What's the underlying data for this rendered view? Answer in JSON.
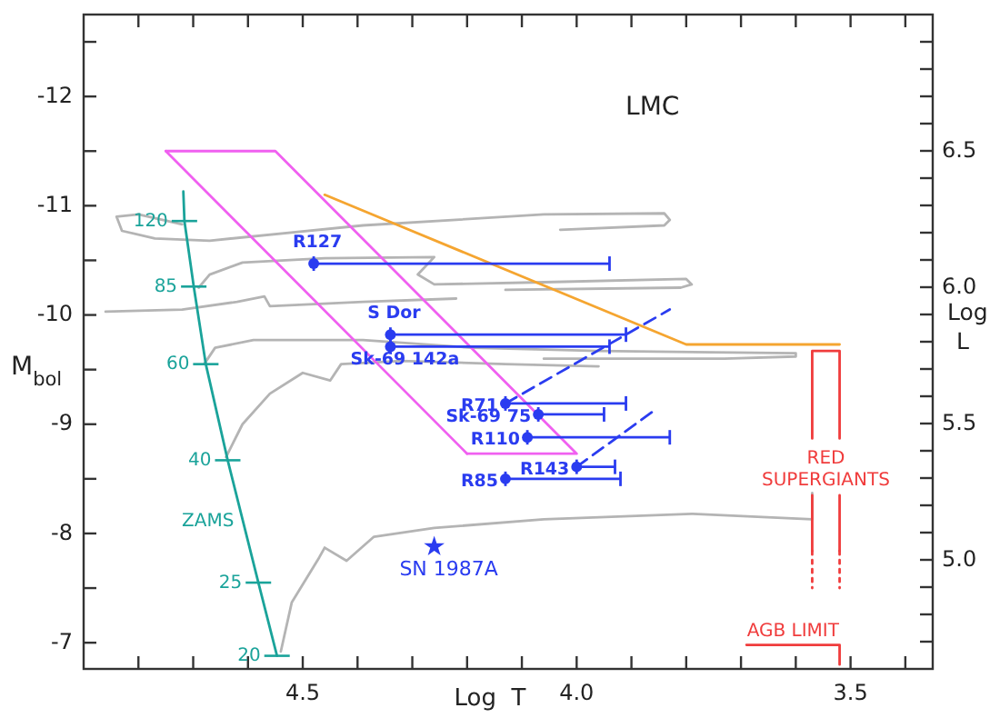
{
  "chart_data": {
    "type": "scatter",
    "title": "LMC",
    "xlabel": "Log  T",
    "ylabel": "M$_{bol}$",
    "y2label": "Log L",
    "xlim": [
      4.9,
      3.35
    ],
    "ylim": [
      -6.76,
      -12.75
    ],
    "y2lim": [
      4.6,
      7.0
    ],
    "xticks": [
      {
        "value": 4.8,
        "label": null
      },
      {
        "value": 4.7,
        "label": null
      },
      {
        "value": 4.6,
        "label": null
      },
      4.5,
      {
        "value": 4.4,
        "label": null
      },
      {
        "value": 4.3,
        "label": null
      },
      {
        "value": 4.2,
        "label": null
      },
      {
        "value": 4.1,
        "label": null
      },
      {
        "value": 4.0,
        "label": "4.0"
      },
      {
        "value": 3.9,
        "label": null
      },
      {
        "value": 3.8,
        "label": null
      },
      {
        "value": 3.7,
        "label": null
      },
      {
        "value": 3.6,
        "label": null
      },
      3.5,
      {
        "value": 3.4,
        "label": null
      }
    ],
    "yticks": [
      {
        "value": -12.5,
        "label": null
      },
      -12,
      {
        "value": -11.5,
        "label": null
      },
      -11,
      {
        "value": -10.5,
        "label": null
      },
      -10,
      {
        "value": -9.5,
        "label": null
      },
      -9,
      {
        "value": -8.5,
        "label": null
      },
      -8,
      {
        "value": -7.5,
        "label": null
      },
      -7
    ],
    "y2ticks": [
      {
        "value": 4.7,
        "label": null
      },
      {
        "value": 4.8,
        "label": null
      },
      {
        "value": 4.9,
        "label": null
      },
      {
        "value": 5.0,
        "label": "5.0"
      },
      {
        "value": 5.1,
        "label": null
      },
      {
        "value": 5.2,
        "label": null
      },
      {
        "value": 5.3,
        "label": null
      },
      {
        "value": 5.4,
        "label": null
      },
      5.5,
      {
        "value": 5.6,
        "label": null
      },
      {
        "value": 5.7,
        "label": null
      },
      {
        "value": 5.8,
        "label": null
      },
      {
        "value": 5.9,
        "label": null
      },
      {
        "value": 6.0,
        "label": "6.0"
      },
      {
        "value": 6.1,
        "label": null
      },
      {
        "value": 6.2,
        "label": null
      },
      {
        "value": 6.3,
        "label": null
      },
      {
        "value": 6.4,
        "label": null
      },
      6.5,
      {
        "value": 6.6,
        "label": null
      },
      {
        "value": 6.7,
        "label": null
      },
      {
        "value": 6.8,
        "label": null
      },
      {
        "value": 6.9,
        "label": null
      }
    ],
    "series": [
      {
        "type": "line",
        "color": "#b4b4b4",
        "x": [
          4.72,
          4.8,
          4.84,
          4.83,
          4.77,
          4.67,
          4.39,
          4.06,
          3.84,
          3.83,
          3.84,
          4.03
        ],
        "values": [
          -10.83,
          -10.92,
          -10.9,
          -10.77,
          -10.7,
          -10.68,
          -10.82,
          -10.92,
          -10.93,
          -10.87,
          -10.82,
          -10.78
        ]
      },
      {
        "type": "line",
        "color": "#b4b4b4",
        "x": [
          4.69,
          4.67,
          4.61,
          4.46,
          4.26,
          4.29,
          4.26,
          4.06,
          3.8,
          3.79,
          3.81,
          4.13
        ],
        "values": [
          -10.25,
          -10.37,
          -10.48,
          -10.52,
          -10.53,
          -10.37,
          -10.28,
          -10.3,
          -10.33,
          -10.28,
          -10.25,
          -10.23
        ]
      },
      {
        "type": "line",
        "color": "#b4b4b4",
        "x": [
          4.86,
          4.72,
          4.62,
          4.57,
          4.56,
          4.39,
          4.22
        ],
        "values": [
          -10.03,
          -10.05,
          -10.12,
          -10.17,
          -10.08,
          -10.12,
          -10.15
        ]
      },
      {
        "type": "line",
        "color": "#b4b4b4",
        "x": [
          4.68,
          4.66,
          4.59,
          4.39,
          4.19,
          3.96,
          3.6,
          3.6,
          3.73,
          4.06
        ],
        "values": [
          -9.55,
          -9.7,
          -9.77,
          -9.77,
          -9.7,
          -9.67,
          -9.65,
          -9.62,
          -9.6,
          -9.6
        ]
      },
      {
        "type": "line",
        "color": "#b4b4b4",
        "x": [
          4.64,
          4.61,
          4.56,
          4.5,
          4.45,
          4.43,
          4.32,
          4.13,
          3.96
        ],
        "values": [
          -8.7,
          -9.0,
          -9.28,
          -9.47,
          -9.4,
          -9.55,
          -9.58,
          -9.55,
          -9.53
        ]
      },
      {
        "type": "line",
        "color": "#b4b4b4",
        "x": [
          4.54,
          4.52,
          4.47,
          4.46,
          4.42,
          4.37,
          4.26,
          4.06,
          3.79,
          3.57,
          3.57
        ],
        "values": [
          -6.92,
          -7.37,
          -7.78,
          -7.87,
          -7.75,
          -7.97,
          -8.05,
          -8.13,
          -8.18,
          -8.13,
          -8.37
        ]
      },
      {
        "type": "line",
        "color": "#f060f0",
        "x": [
          4.75,
          4.55,
          4.0,
          4.2
        ],
        "values": [
          -11.5,
          -11.5,
          -8.73,
          -8.73
        ]
      },
      {
        "type": "line",
        "color": "#f060f0",
        "x": [
          4.2,
          4.75
        ],
        "values": [
          -8.73,
          -11.5
        ]
      },
      {
        "type": "line",
        "color": "#f5a530",
        "x": [
          4.46,
          3.8,
          3.52
        ],
        "values": [
          -11.1,
          -9.73,
          -9.73
        ]
      },
      {
        "type": "line",
        "name": "RED SUPERGIANTS",
        "color": "#f03c3c",
        "x": [
          3.57,
          3.57,
          3.52,
          3.52
        ],
        "values": [
          -8.87,
          -9.67,
          -9.67,
          -8.87
        ]
      },
      {
        "type": "line",
        "color": "#f03c3c",
        "x": [
          3.57,
          3.57
        ],
        "values": [
          -8.35,
          -7.84
        ]
      },
      {
        "type": "line",
        "color": "#f03c3c",
        "x": [
          3.52,
          3.52
        ],
        "values": [
          -8.35,
          -7.84
        ]
      },
      {
        "type": "line",
        "color": "#f03c3c",
        "line_style": "dotted",
        "x": [
          3.57,
          3.57
        ],
        "values": [
          -7.84,
          -7.5
        ]
      },
      {
        "type": "line",
        "color": "#f03c3c",
        "line_style": "dotted",
        "x": [
          3.52,
          3.52
        ],
        "values": [
          -7.84,
          -7.5
        ]
      },
      {
        "type": "line",
        "name": "AGB LIMIT",
        "color": "#f03c3c",
        "x": [
          3.69,
          3.52,
          3.52
        ],
        "values": [
          -6.98,
          -6.98,
          -6.8
        ]
      },
      {
        "type": "line",
        "name": "ZAMS",
        "color": "#1aa39a",
        "x": [
          4.718,
          4.716,
          4.699,
          4.677,
          4.637,
          4.581,
          4.547
        ],
        "values": [
          -11.13,
          -10.86,
          -10.26,
          -9.55,
          -8.67,
          -7.55,
          -6.88
        ]
      },
      {
        "type": "line",
        "color": "#2a3cf0",
        "line_style": "dashed",
        "x": [
          4.13,
          3.83
        ],
        "values": [
          -9.19,
          -10.05
        ]
      },
      {
        "type": "line",
        "color": "#2a3cf0",
        "line_style": "dashed",
        "x": [
          4.0,
          3.86
        ],
        "values": [
          -8.61,
          -9.12
        ]
      },
      {
        "name": "R127",
        "color": "#2a3cf0",
        "marker": "circle",
        "x": [
          4.48
        ],
        "values": [
          -10.47
        ],
        "xerrors": [
          [
            3.94,
            4.48
          ]
        ]
      },
      {
        "name": "S Dor",
        "color": "#2a3cf0",
        "marker": "circle",
        "x": [
          4.34
        ],
        "values": [
          -9.82
        ],
        "xerrors": [
          [
            3.91,
            4.34
          ]
        ]
      },
      {
        "name": "Sk-69 142a",
        "color": "#2a3cf0",
        "marker": "circle",
        "x": [
          4.34
        ],
        "values": [
          -9.71
        ],
        "xerrors": [
          [
            3.94,
            4.34
          ]
        ]
      },
      {
        "name": "R71",
        "color": "#2a3cf0",
        "marker": "circle",
        "x": [
          4.13
        ],
        "values": [
          -9.19
        ],
        "xerrors": [
          [
            3.91,
            4.13
          ]
        ]
      },
      {
        "name": "Sk-69 75",
        "color": "#2a3cf0",
        "marker": "circle",
        "x": [
          4.07
        ],
        "values": [
          -9.09
        ],
        "xerrors": [
          [
            3.95,
            4.07
          ]
        ]
      },
      {
        "name": "R110",
        "color": "#2a3cf0",
        "marker": "circle",
        "x": [
          4.09
        ],
        "values": [
          -8.88
        ],
        "xerrors": [
          [
            3.83,
            4.09
          ]
        ]
      },
      {
        "name": "R143",
        "color": "#2a3cf0",
        "marker": "circle",
        "x": [
          4.0
        ],
        "values": [
          -8.61
        ],
        "xerrors": [
          [
            3.93,
            4.0
          ]
        ]
      },
      {
        "name": "R85",
        "color": "#2a3cf0",
        "marker": "circle",
        "x": [
          4.13
        ],
        "values": [
          -8.5
        ],
        "xerrors": [
          [
            3.92,
            4.13
          ]
        ]
      },
      {
        "name": "SN 1987A",
        "color": "#2a3cf0",
        "marker": "star",
        "x": [
          4.26
        ],
        "values": [
          -7.88
        ]
      }
    ],
    "annotations": [
      {
        "text": "120",
        "x": 4.716,
        "y": -10.86
      },
      {
        "text": "85",
        "x": 4.699,
        "y": -10.26
      },
      {
        "text": "60",
        "x": 4.677,
        "y": -9.55
      },
      {
        "text": "40",
        "x": 4.637,
        "y": -8.67
      },
      {
        "text": "25",
        "x": 4.581,
        "y": -7.55
      },
      {
        "text": "20",
        "x": 4.547,
        "y": -6.88
      }
    ]
  }
}
